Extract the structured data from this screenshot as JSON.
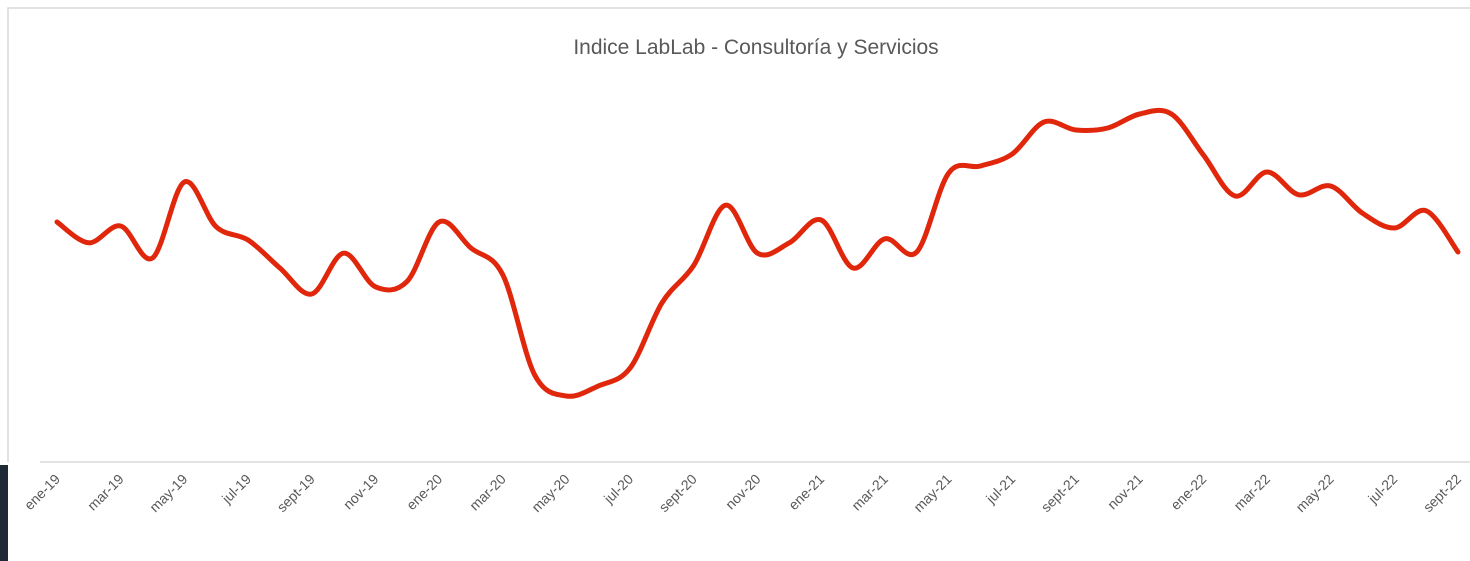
{
  "chart_data": {
    "type": "line",
    "title": "Indice LabLab - Consultoría y Servicios",
    "categories": [
      "ene-19",
      null,
      "mar-19",
      null,
      "may-19",
      null,
      "jul-19",
      null,
      "sept-19",
      null,
      "nov-19",
      null,
      "ene-20",
      null,
      "mar-20",
      null,
      "may-20",
      null,
      "jul-20",
      null,
      "sept-20",
      null,
      "nov-20",
      null,
      "ene-21",
      null,
      "mar-21",
      null,
      "may-21",
      null,
      "jul-21",
      null,
      "sept-21",
      null,
      "nov-21",
      null,
      "ene-22",
      null,
      "mar-22",
      null,
      "may-22",
      null,
      "jul-22",
      null,
      "sept-22"
    ],
    "series": [
      {
        "name": "Indice LabLab",
        "color": "#e0260b",
        "values": [
          60,
          54.8,
          59,
          51,
          70,
          58.8,
          55.5,
          48.5,
          42,
          52.2,
          43.8,
          45.2,
          60,
          53.5,
          46.8,
          21.8,
          16.5,
          19,
          23.5,
          39.8,
          49.2,
          64.2,
          52.2,
          54.8,
          60.5,
          48.5,
          55.8,
          52.5,
          72.2,
          74,
          77,
          85,
          83,
          83.5,
          87,
          87,
          76.8,
          66.5,
          72.5,
          66.8,
          69,
          62.2,
          58.5,
          62.8,
          52.5
        ]
      }
    ],
    "ylim": [
      0,
      95
    ]
  }
}
